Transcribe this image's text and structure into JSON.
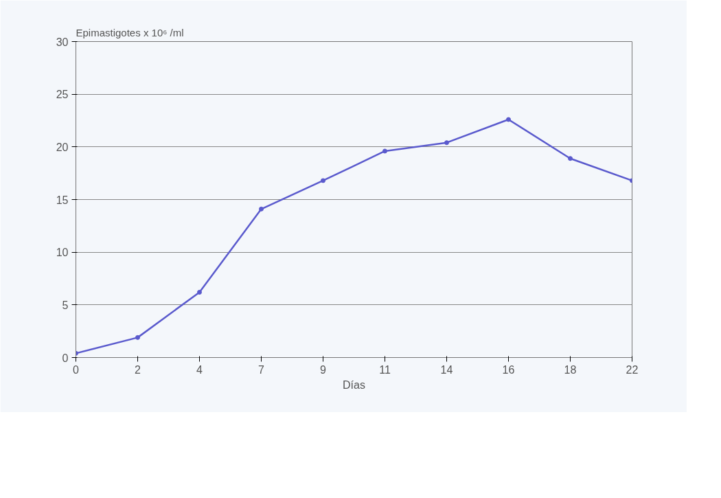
{
  "chart_data": {
    "type": "line",
    "ylabel": "Epimastigotes x 10⁶ /ml",
    "xlabel": "Días",
    "categories": [
      "0",
      "2",
      "4",
      "7",
      "9",
      "11",
      "14",
      "16",
      "18",
      "22"
    ],
    "series": [
      {
        "color": "#5a5acd",
        "values": [
          0.4,
          1.9,
          6.2,
          14.1,
          16.8,
          19.6,
          20.4,
          22.6,
          18.9,
          16.8
        ]
      }
    ],
    "ylim": [
      0,
      30
    ],
    "yticks": [
      0,
      5,
      10,
      15,
      20,
      25,
      30
    ],
    "grid": "y",
    "marker": "circle",
    "line_style": "solid"
  }
}
